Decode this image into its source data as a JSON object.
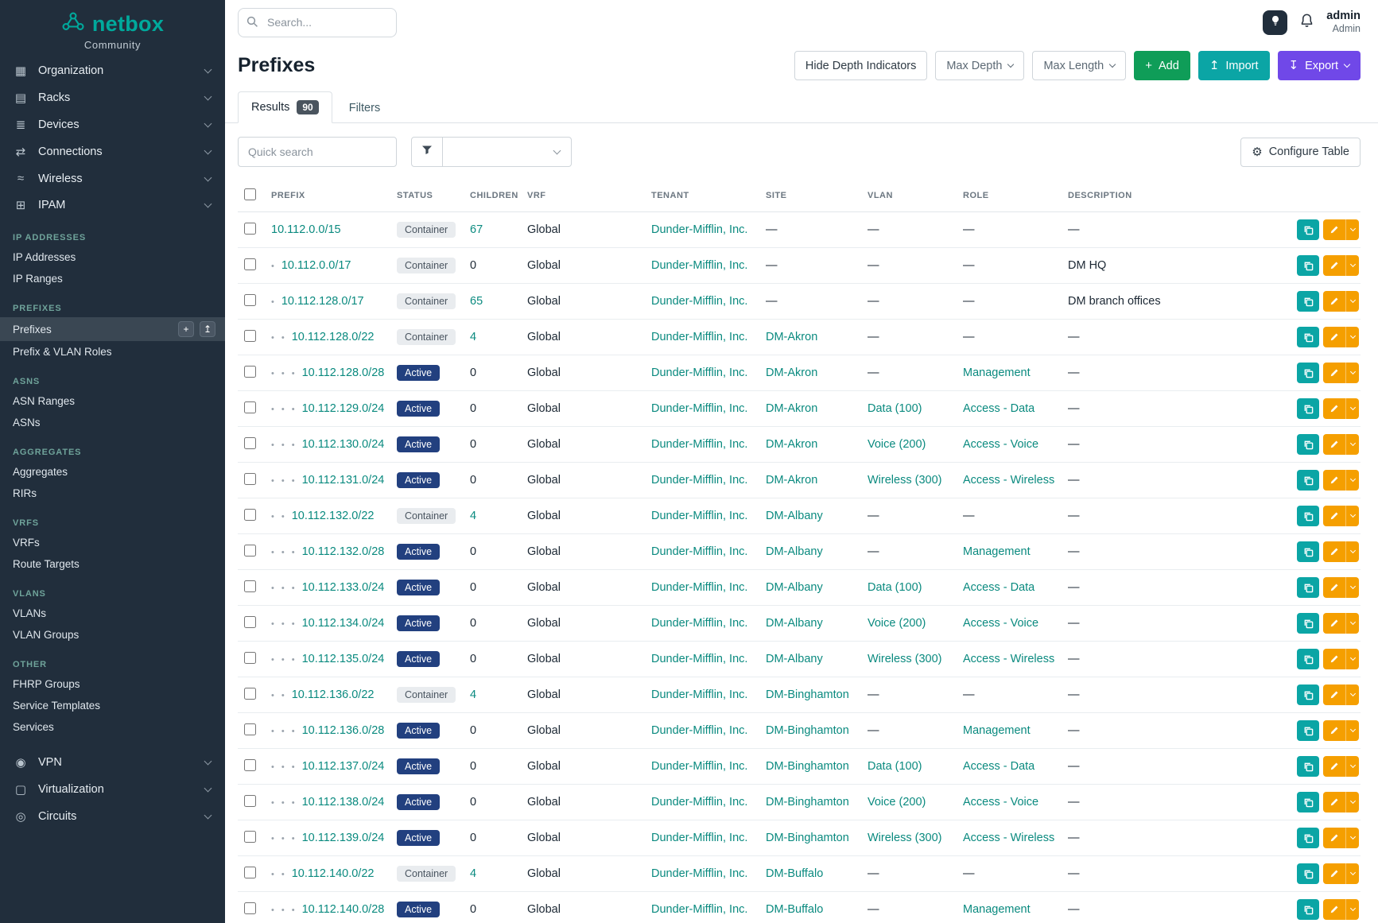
{
  "brand": {
    "name": "netbox",
    "subtitle": "Community"
  },
  "topbar": {
    "search_placeholder": "Search...",
    "user_name": "admin",
    "user_role": "Admin"
  },
  "sidebar": {
    "top_items": [
      {
        "label": "Organization",
        "icon": "organization"
      },
      {
        "label": "Racks",
        "icon": "racks"
      },
      {
        "label": "Devices",
        "icon": "devices"
      },
      {
        "label": "Connections",
        "icon": "connections"
      },
      {
        "label": "Wireless",
        "icon": "wireless"
      },
      {
        "label": "IPAM",
        "icon": "ipam"
      }
    ],
    "sections": [
      {
        "title": "IP ADDRESSES",
        "items": [
          {
            "label": "IP Addresses"
          },
          {
            "label": "IP Ranges"
          }
        ]
      },
      {
        "title": "PREFIXES",
        "items": [
          {
            "label": "Prefixes",
            "active": true,
            "quick_actions": [
              "add",
              "import"
            ]
          },
          {
            "label": "Prefix & VLAN Roles"
          }
        ]
      },
      {
        "title": "ASNS",
        "items": [
          {
            "label": "ASN Ranges"
          },
          {
            "label": "ASNs"
          }
        ]
      },
      {
        "title": "AGGREGATES",
        "items": [
          {
            "label": "Aggregates"
          },
          {
            "label": "RIRs"
          }
        ]
      },
      {
        "title": "VRFS",
        "items": [
          {
            "label": "VRFs"
          },
          {
            "label": "Route Targets"
          }
        ]
      },
      {
        "title": "VLANS",
        "items": [
          {
            "label": "VLANs"
          },
          {
            "label": "VLAN Groups"
          }
        ]
      },
      {
        "title": "OTHER",
        "items": [
          {
            "label": "FHRP Groups"
          },
          {
            "label": "Service Templates"
          },
          {
            "label": "Services"
          }
        ]
      }
    ],
    "bottom_items": [
      {
        "label": "VPN",
        "icon": "vpn"
      },
      {
        "label": "Virtualization",
        "icon": "virtualization"
      },
      {
        "label": "Circuits",
        "icon": "circuits"
      }
    ]
  },
  "page": {
    "title": "Prefixes",
    "toolbar": {
      "hide_depth_label": "Hide Depth Indicators",
      "max_depth_label": "Max Depth",
      "max_length_label": "Max Length",
      "add_label": "Add",
      "import_label": "Import",
      "export_label": "Export"
    },
    "tabs": {
      "results_label": "Results",
      "results_count": "90",
      "filters_label": "Filters"
    },
    "quick_search_placeholder": "Quick search",
    "configure_table_label": "Configure Table"
  },
  "table": {
    "columns": [
      "PREFIX",
      "STATUS",
      "CHILDREN",
      "VRF",
      "TENANT",
      "SITE",
      "VLAN",
      "ROLE",
      "DESCRIPTION"
    ],
    "rows": [
      {
        "depth": 0,
        "prefix": "10.112.0.0/15",
        "status": "Container",
        "children": "67",
        "vrf": "Global",
        "tenant": "Dunder-Mifflin, Inc.",
        "site": "—",
        "vlan": "—",
        "role": "—",
        "description": "—"
      },
      {
        "depth": 1,
        "prefix": "10.112.0.0/17",
        "status": "Container",
        "children": "0",
        "vrf": "Global",
        "tenant": "Dunder-Mifflin, Inc.",
        "site": "—",
        "vlan": "—",
        "role": "—",
        "description": "DM HQ"
      },
      {
        "depth": 1,
        "prefix": "10.112.128.0/17",
        "status": "Container",
        "children": "65",
        "vrf": "Global",
        "tenant": "Dunder-Mifflin, Inc.",
        "site": "—",
        "vlan": "—",
        "role": "—",
        "description": "DM branch offices"
      },
      {
        "depth": 2,
        "prefix": "10.112.128.0/22",
        "status": "Container",
        "children": "4",
        "vrf": "Global",
        "tenant": "Dunder-Mifflin, Inc.",
        "site": "DM-Akron",
        "vlan": "—",
        "role": "—",
        "description": "—"
      },
      {
        "depth": 3,
        "prefix": "10.112.128.0/28",
        "status": "Active",
        "children": "0",
        "vrf": "Global",
        "tenant": "Dunder-Mifflin, Inc.",
        "site": "DM-Akron",
        "vlan": "—",
        "role": "Management",
        "description": "—"
      },
      {
        "depth": 3,
        "prefix": "10.112.129.0/24",
        "status": "Active",
        "children": "0",
        "vrf": "Global",
        "tenant": "Dunder-Mifflin, Inc.",
        "site": "DM-Akron",
        "vlan": "Data (100)",
        "role": "Access - Data",
        "description": "—"
      },
      {
        "depth": 3,
        "prefix": "10.112.130.0/24",
        "status": "Active",
        "children": "0",
        "vrf": "Global",
        "tenant": "Dunder-Mifflin, Inc.",
        "site": "DM-Akron",
        "vlan": "Voice (200)",
        "role": "Access - Voice",
        "description": "—"
      },
      {
        "depth": 3,
        "prefix": "10.112.131.0/24",
        "status": "Active",
        "children": "0",
        "vrf": "Global",
        "tenant": "Dunder-Mifflin, Inc.",
        "site": "DM-Akron",
        "vlan": "Wireless (300)",
        "role": "Access - Wireless",
        "description": "—"
      },
      {
        "depth": 2,
        "prefix": "10.112.132.0/22",
        "status": "Container",
        "children": "4",
        "vrf": "Global",
        "tenant": "Dunder-Mifflin, Inc.",
        "site": "DM-Albany",
        "vlan": "—",
        "role": "—",
        "description": "—"
      },
      {
        "depth": 3,
        "prefix": "10.112.132.0/28",
        "status": "Active",
        "children": "0",
        "vrf": "Global",
        "tenant": "Dunder-Mifflin, Inc.",
        "site": "DM-Albany",
        "vlan": "—",
        "role": "Management",
        "description": "—"
      },
      {
        "depth": 3,
        "prefix": "10.112.133.0/24",
        "status": "Active",
        "children": "0",
        "vrf": "Global",
        "tenant": "Dunder-Mifflin, Inc.",
        "site": "DM-Albany",
        "vlan": "Data (100)",
        "role": "Access - Data",
        "description": "—"
      },
      {
        "depth": 3,
        "prefix": "10.112.134.0/24",
        "status": "Active",
        "children": "0",
        "vrf": "Global",
        "tenant": "Dunder-Mifflin, Inc.",
        "site": "DM-Albany",
        "vlan": "Voice (200)",
        "role": "Access - Voice",
        "description": "—"
      },
      {
        "depth": 3,
        "prefix": "10.112.135.0/24",
        "status": "Active",
        "children": "0",
        "vrf": "Global",
        "tenant": "Dunder-Mifflin, Inc.",
        "site": "DM-Albany",
        "vlan": "Wireless (300)",
        "role": "Access - Wireless",
        "description": "—"
      },
      {
        "depth": 2,
        "prefix": "10.112.136.0/22",
        "status": "Container",
        "children": "4",
        "vrf": "Global",
        "tenant": "Dunder-Mifflin, Inc.",
        "site": "DM-Binghamton",
        "vlan": "—",
        "role": "—",
        "description": "—"
      },
      {
        "depth": 3,
        "prefix": "10.112.136.0/28",
        "status": "Active",
        "children": "0",
        "vrf": "Global",
        "tenant": "Dunder-Mifflin, Inc.",
        "site": "DM-Binghamton",
        "vlan": "—",
        "role": "Management",
        "description": "—"
      },
      {
        "depth": 3,
        "prefix": "10.112.137.0/24",
        "status": "Active",
        "children": "0",
        "vrf": "Global",
        "tenant": "Dunder-Mifflin, Inc.",
        "site": "DM-Binghamton",
        "vlan": "Data (100)",
        "role": "Access - Data",
        "description": "—"
      },
      {
        "depth": 3,
        "prefix": "10.112.138.0/24",
        "status": "Active",
        "children": "0",
        "vrf": "Global",
        "tenant": "Dunder-Mifflin, Inc.",
        "site": "DM-Binghamton",
        "vlan": "Voice (200)",
        "role": "Access - Voice",
        "description": "—"
      },
      {
        "depth": 3,
        "prefix": "10.112.139.0/24",
        "status": "Active",
        "children": "0",
        "vrf": "Global",
        "tenant": "Dunder-Mifflin, Inc.",
        "site": "DM-Binghamton",
        "vlan": "Wireless (300)",
        "role": "Access - Wireless",
        "description": "—"
      },
      {
        "depth": 2,
        "prefix": "10.112.140.0/22",
        "status": "Container",
        "children": "4",
        "vrf": "Global",
        "tenant": "Dunder-Mifflin, Inc.",
        "site": "DM-Buffalo",
        "vlan": "—",
        "role": "—",
        "description": "—"
      },
      {
        "depth": 3,
        "prefix": "10.112.140.0/28",
        "status": "Active",
        "children": "0",
        "vrf": "Global",
        "tenant": "Dunder-Mifflin, Inc.",
        "site": "DM-Buffalo",
        "vlan": "—",
        "role": "Management",
        "description": "—"
      }
    ]
  },
  "colors": {
    "brand_teal": "#00a99c",
    "link_teal": "#0a8a7f",
    "add_green": "#0f9d58",
    "import_teal": "#0ba5a5",
    "export_purple": "#7048e8",
    "active_badge_blue": "#22407f",
    "edit_orange": "#f59f00",
    "sidebar_bg": "#212e3c"
  }
}
